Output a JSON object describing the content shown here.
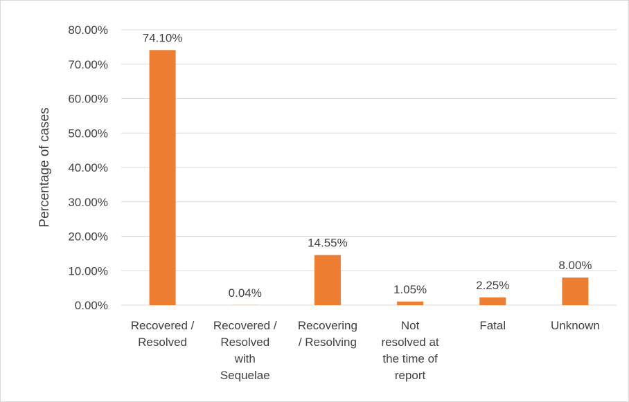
{
  "chart_data": {
    "type": "bar",
    "categories": [
      [
        "Recovered /",
        "Resolved"
      ],
      [
        "Recovered /",
        "Resolved",
        "with",
        "Sequelae"
      ],
      [
        "Recovering",
        "/ Resolving"
      ],
      [
        "Not",
        "resolved at",
        "the time of",
        "report"
      ],
      [
        "Fatal"
      ],
      [
        "Unknown"
      ]
    ],
    "values": [
      74.1,
      0.04,
      14.55,
      1.05,
      2.25,
      8.0
    ],
    "data_labels": [
      "74.10%",
      "0.04%",
      "14.55%",
      "1.05%",
      "2.25%",
      "8.00%"
    ],
    "ylabel": "Percentage of cases",
    "xlabel": "",
    "title": "",
    "ylim": [
      0,
      80
    ],
    "yticks": [
      "0.00%",
      "10.00%",
      "20.00%",
      "30.00%",
      "40.00%",
      "50.00%",
      "60.00%",
      "70.00%",
      "80.00%"
    ],
    "grid": true,
    "legend": "none",
    "colors": {
      "bar": "#ED7D31",
      "grid": "#D9D9D9",
      "text": "#404040"
    }
  }
}
